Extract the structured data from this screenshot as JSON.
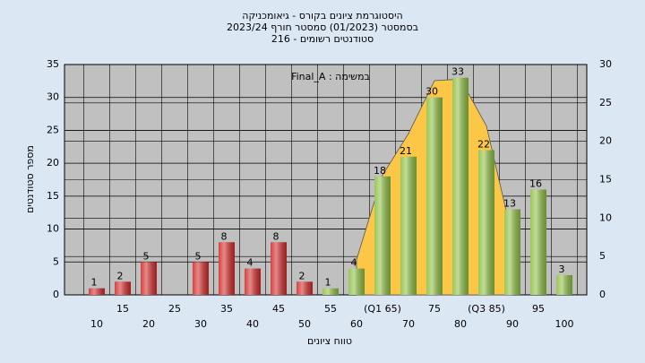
{
  "chart_data": {
    "type": "bar",
    "title": [
      "היסטוגרמת ציונים בקורס - גיאומכניקה",
      "בסמסטר  (01/2023)  סמסטר חורף 2023/24",
      "סטודנטים רשומים - 216"
    ],
    "annotation": "במשימה : Final_A",
    "x_label": "טווח ציונים",
    "y_label": "מספר סטודנטים",
    "categories": [
      "10",
      "15",
      "20",
      "25",
      "30",
      "35",
      "40",
      "45",
      "50",
      "55",
      "60",
      "(Q1 65)",
      "70",
      "75",
      "80",
      "(Q3 85)",
      "90",
      "95",
      "100"
    ],
    "values": [
      1,
      2,
      5,
      0,
      5,
      8,
      4,
      8,
      2,
      1,
      4,
      18,
      21,
      30,
      33,
      22,
      13,
      16,
      3
    ],
    "colors": [
      "#d42a2a",
      "#d42a2a",
      "#d42a2a",
      "#d42a2a",
      "#d42a2a",
      "#d42a2a",
      "#d42a2a",
      "#d42a2a",
      "#d42a2a",
      "#8fc043",
      "#8fc043",
      "#8fc043",
      "#8fc043",
      "#8fc043",
      "#8fc043",
      "#8fc043",
      "#8fc043",
      "#8fc043",
      "#8fc043"
    ],
    "ylim": [
      0,
      35
    ],
    "yticks": [
      0,
      5,
      10,
      15,
      20,
      25,
      30,
      35
    ],
    "y2lim": [
      0,
      30
    ],
    "y2ticks": [
      0,
      5,
      10,
      15,
      20,
      25,
      30
    ],
    "grid": true,
    "overlay": {
      "type": "area",
      "axis": "y2",
      "color": "#fcc747",
      "x": [
        60,
        65,
        70,
        75,
        80,
        85,
        90
      ],
      "values": [
        4.6,
        15.6,
        21,
        27.9,
        28.1,
        22,
        7.5
      ]
    }
  }
}
